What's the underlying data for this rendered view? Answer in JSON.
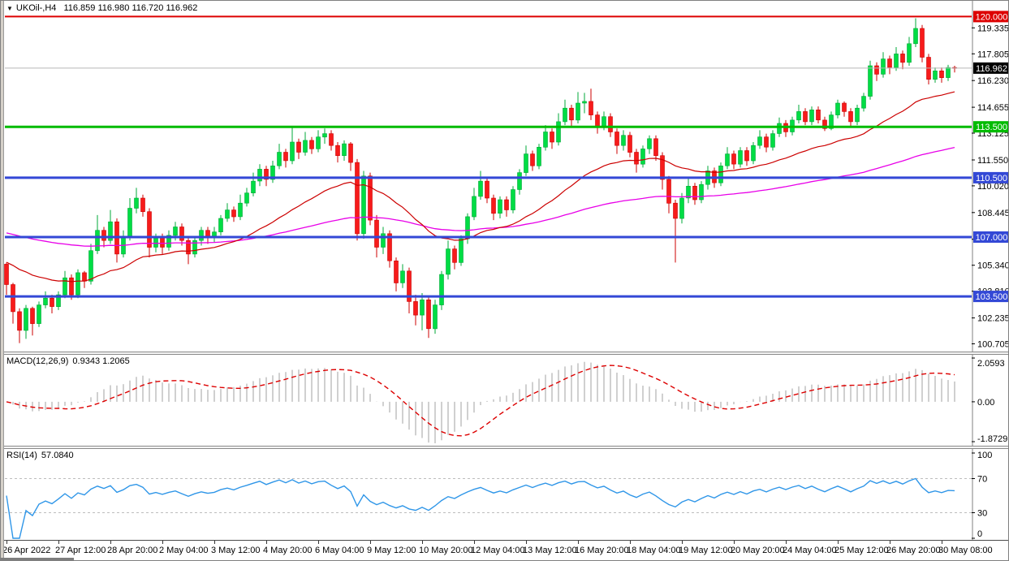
{
  "title": {
    "symbol_period": "UKOil-,H4",
    "ohlc": "116.859 116.980 116.720 116.962"
  },
  "indicator_labels": {
    "macd_name": "MACD(12,26,9)",
    "macd_values": "0.9343 1.2065",
    "rsi_name": "RSI(14)",
    "rsi_value": "57.0840"
  },
  "colors": {
    "bull_fill": "#00dd44",
    "bull_stroke": "#00a838",
    "bear_fill": "#f71b1b",
    "bear_stroke": "#cc0000",
    "ma_fast": "#cc0000",
    "ma_slow": "#e800e8",
    "level_red": "#dd0000",
    "level_green": "#00bb00",
    "level_blue": "#3348d6",
    "bid_line": "#b8b8b8",
    "bid_badge": "#000000",
    "macd_hist": "#c4c4c4",
    "macd_signal": "#dd0000",
    "rsi_line": "#2f96e8",
    "rsi_levels": "#bdbdbd",
    "axis_text": "#000000",
    "axis_line": "#808080"
  },
  "chart_data": {
    "type": "candlestick",
    "symbol": "UKOil-",
    "timeframe": "H4",
    "title": "UKOil-,H4 116.859 116.980 116.720 116.962",
    "price_axis": {
      "ticks": [
        "119.335",
        "117.805",
        "116.230",
        "114.655",
        "113.125",
        "111.550",
        "110.020",
        "108.445",
        "106.870",
        "105.340",
        "103.810",
        "102.235",
        "100.705"
      ],
      "range": [
        100.3,
        120.45
      ],
      "current_price": 116.962,
      "current_price_label": "116.962"
    },
    "levels": [
      {
        "price": 120.0,
        "label": "120.000",
        "color": "#dd0000",
        "width": 2
      },
      {
        "price": 113.5,
        "label": "113.500",
        "color": "#00bb00",
        "width": 3
      },
      {
        "price": 110.5,
        "label": "110.500",
        "color": "#3348d6",
        "width": 3
      },
      {
        "price": 107.0,
        "label": "107.000",
        "color": "#3348d6",
        "width": 3
      },
      {
        "price": 103.5,
        "label": "103.500",
        "color": "#3348d6",
        "width": 3
      }
    ],
    "time_labels": [
      "26 Apr 2022",
      "27 Apr 12:00",
      "28 Apr 20:00",
      "2 May 04:00",
      "3 May 12:00",
      "4 May 20:00",
      "6 May 04:00",
      "9 May 12:00",
      "10 May 20:00",
      "12 May 04:00",
      "13 May 12:00",
      "16 May 20:00",
      "18 May 04:00",
      "19 May 12:00",
      "20 May 20:00",
      "24 May 04:00",
      "25 May 12:00",
      "26 May 20:00",
      "30 May 08:00"
    ],
    "moving_averages": [
      {
        "name": "fast",
        "period": 16,
        "seed": 105.6,
        "color": "#cc0000"
      },
      {
        "name": "slow",
        "period": 55,
        "seed": 107.3,
        "color": "#e800e8"
      }
    ],
    "macd": {
      "params": [
        12,
        26,
        9
      ],
      "value_main": "0.9343",
      "value_signal": "1.2065",
      "axis_ticks": [
        "2.0593",
        "0.00",
        "-1.8729"
      ],
      "range": [
        -1.8729,
        2.0593
      ]
    },
    "rsi": {
      "period": 14,
      "value": "57.0840",
      "axis_ticks": [
        "100",
        "70",
        "30",
        "0"
      ],
      "levels": [
        70,
        30
      ],
      "range": [
        0,
        100
      ]
    },
    "candles": [
      [
        105.4,
        105.5,
        103.6,
        104.2
      ],
      [
        104.2,
        104.3,
        101.9,
        102.6
      ],
      [
        102.6,
        102.8,
        100.75,
        101.5
      ],
      [
        101.5,
        103.0,
        101.0,
        102.8
      ],
      [
        102.8,
        102.9,
        101.2,
        101.9
      ],
      [
        101.9,
        103.2,
        101.7,
        103.0
      ],
      [
        103.0,
        103.8,
        102.8,
        103.4
      ],
      [
        103.4,
        103.6,
        102.5,
        102.9
      ],
      [
        102.9,
        103.8,
        102.7,
        103.6
      ],
      [
        103.6,
        105.0,
        103.4,
        104.6
      ],
      [
        104.6,
        104.8,
        103.3,
        103.6
      ],
      [
        103.6,
        105.1,
        103.4,
        104.9
      ],
      [
        104.9,
        105.0,
        104.0,
        104.4
      ],
      [
        104.4,
        106.6,
        104.2,
        106.2
      ],
      [
        106.2,
        108.3,
        106.0,
        107.4
      ],
      [
        107.4,
        107.6,
        106.4,
        106.8
      ],
      [
        106.8,
        108.6,
        106.6,
        107.9
      ],
      [
        107.9,
        108.1,
        105.5,
        106.0
      ],
      [
        106.0,
        107.4,
        105.8,
        107.0
      ],
      [
        107.0,
        109.3,
        106.8,
        108.7
      ],
      [
        108.7,
        109.9,
        108.4,
        109.3
      ],
      [
        109.3,
        109.5,
        108.2,
        108.5
      ],
      [
        108.5,
        108.7,
        105.8,
        106.4
      ],
      [
        106.4,
        107.2,
        106.1,
        107.0
      ],
      [
        107.0,
        107.2,
        106.0,
        106.4
      ],
      [
        106.4,
        107.4,
        106.2,
        107.1
      ],
      [
        107.1,
        107.9,
        106.8,
        107.6
      ],
      [
        107.6,
        107.8,
        106.5,
        106.8
      ],
      [
        106.8,
        107.0,
        105.4,
        106.0
      ],
      [
        106.0,
        107.0,
        105.8,
        106.8
      ],
      [
        106.8,
        107.6,
        106.5,
        107.4
      ],
      [
        107.4,
        107.6,
        106.6,
        107.0
      ],
      [
        107.0,
        107.6,
        106.7,
        107.3
      ],
      [
        107.3,
        108.3,
        107.1,
        108.1
      ],
      [
        108.1,
        109.0,
        107.9,
        108.6
      ],
      [
        108.6,
        108.8,
        107.9,
        108.2
      ],
      [
        108.2,
        109.5,
        108.0,
        109.0
      ],
      [
        109.0,
        109.9,
        108.8,
        109.6
      ],
      [
        109.6,
        110.8,
        109.4,
        110.3
      ],
      [
        110.3,
        111.3,
        110.0,
        111.0
      ],
      [
        111.0,
        111.2,
        110.0,
        110.4
      ],
      [
        110.4,
        111.5,
        110.2,
        111.2
      ],
      [
        111.2,
        112.5,
        111.0,
        112.0
      ],
      [
        112.0,
        112.2,
        111.1,
        111.5
      ],
      [
        111.5,
        113.55,
        111.3,
        112.6
      ],
      [
        112.6,
        112.8,
        111.6,
        112.0
      ],
      [
        112.0,
        113.2,
        111.8,
        112.7
      ],
      [
        112.7,
        112.9,
        111.9,
        112.2
      ],
      [
        112.2,
        113.3,
        112.0,
        112.9
      ],
      [
        112.9,
        113.4,
        112.5,
        113.1
      ],
      [
        113.1,
        113.3,
        112.1,
        112.4
      ],
      [
        112.4,
        112.6,
        111.4,
        111.8
      ],
      [
        111.8,
        112.7,
        111.5,
        112.5
      ],
      [
        112.5,
        112.6,
        110.9,
        111.4
      ],
      [
        111.4,
        111.6,
        106.8,
        107.2
      ],
      [
        107.2,
        110.9,
        106.9,
        110.6
      ],
      [
        110.6,
        110.8,
        107.7,
        108.0
      ],
      [
        108.0,
        108.3,
        105.8,
        106.4
      ],
      [
        106.4,
        107.6,
        106.0,
        107.2
      ],
      [
        107.2,
        107.4,
        105.2,
        105.6
      ],
      [
        105.6,
        105.8,
        103.8,
        104.3
      ],
      [
        104.3,
        105.4,
        104.0,
        105.0
      ],
      [
        105.0,
        105.2,
        102.5,
        103.2
      ],
      [
        103.2,
        103.6,
        101.8,
        102.4
      ],
      [
        102.4,
        103.7,
        101.5,
        103.3
      ],
      [
        103.3,
        103.5,
        101.05,
        101.6
      ],
      [
        101.6,
        103.3,
        101.3,
        103.0
      ],
      [
        103.0,
        105.0,
        102.7,
        104.8
      ],
      [
        104.8,
        106.8,
        104.5,
        106.3
      ],
      [
        106.3,
        106.5,
        105.1,
        105.5
      ],
      [
        105.5,
        107.1,
        105.3,
        106.9
      ],
      [
        106.9,
        108.4,
        106.6,
        108.2
      ],
      [
        108.2,
        109.9,
        108.0,
        109.4
      ],
      [
        109.4,
        110.9,
        109.2,
        110.3
      ],
      [
        110.3,
        110.5,
        109.0,
        109.3
      ],
      [
        109.3,
        109.5,
        108.0,
        108.4
      ],
      [
        108.4,
        109.4,
        108.1,
        109.2
      ],
      [
        109.2,
        109.4,
        108.2,
        108.6
      ],
      [
        108.6,
        110.0,
        108.4,
        109.8
      ],
      [
        109.8,
        111.0,
        109.5,
        110.8
      ],
      [
        110.8,
        112.4,
        110.6,
        111.9
      ],
      [
        111.9,
        112.1,
        110.9,
        111.2
      ],
      [
        111.2,
        112.5,
        111.0,
        112.3
      ],
      [
        112.3,
        113.6,
        112.1,
        113.2
      ],
      [
        113.2,
        113.4,
        112.2,
        112.6
      ],
      [
        112.6,
        114.3,
        112.4,
        113.8
      ],
      [
        113.8,
        115.1,
        113.6,
        114.6
      ],
      [
        114.6,
        114.8,
        113.5,
        113.9
      ],
      [
        113.9,
        115.55,
        113.7,
        114.9
      ],
      [
        114.9,
        115.5,
        114.3,
        115.0
      ],
      [
        115.0,
        115.75,
        113.9,
        114.2
      ],
      [
        114.2,
        114.4,
        113.1,
        113.5
      ],
      [
        113.5,
        114.4,
        113.3,
        114.1
      ],
      [
        114.1,
        114.3,
        112.9,
        113.2
      ],
      [
        113.2,
        113.4,
        111.9,
        112.4
      ],
      [
        112.4,
        113.3,
        112.1,
        113.0
      ],
      [
        113.0,
        113.2,
        111.7,
        112.0
      ],
      [
        112.0,
        112.2,
        110.8,
        111.3
      ],
      [
        111.3,
        112.4,
        111.1,
        112.2
      ],
      [
        112.2,
        113.0,
        111.9,
        112.8
      ],
      [
        112.8,
        113.0,
        111.5,
        111.8
      ],
      [
        111.8,
        112.0,
        109.8,
        110.4
      ],
      [
        110.4,
        110.6,
        108.4,
        109.0
      ],
      [
        109.0,
        109.2,
        105.5,
        108.1
      ],
      [
        108.1,
        109.6,
        107.8,
        109.3
      ],
      [
        109.3,
        110.5,
        109.0,
        110.0
      ],
      [
        110.0,
        110.2,
        108.9,
        109.2
      ],
      [
        109.2,
        110.3,
        109.0,
        110.1
      ],
      [
        110.1,
        111.2,
        109.8,
        110.9
      ],
      [
        110.9,
        111.1,
        109.9,
        110.2
      ],
      [
        110.2,
        111.4,
        110.0,
        111.2
      ],
      [
        111.2,
        112.3,
        111.0,
        111.9
      ],
      [
        111.9,
        112.1,
        111.0,
        111.3
      ],
      [
        111.3,
        112.3,
        111.1,
        112.1
      ],
      [
        112.1,
        112.3,
        111.2,
        111.5
      ],
      [
        111.5,
        112.6,
        111.3,
        112.4
      ],
      [
        112.4,
        113.3,
        112.2,
        112.9
      ],
      [
        112.9,
        113.1,
        112.0,
        112.3
      ],
      [
        112.3,
        113.3,
        112.1,
        113.1
      ],
      [
        113.1,
        114.05,
        112.9,
        113.7
      ],
      [
        113.7,
        113.9,
        112.9,
        113.2
      ],
      [
        113.2,
        114.1,
        113.0,
        113.9
      ],
      [
        113.9,
        114.8,
        113.7,
        114.4
      ],
      [
        114.4,
        114.6,
        113.6,
        113.8
      ],
      [
        113.8,
        114.7,
        113.6,
        114.5
      ],
      [
        114.5,
        114.7,
        113.7,
        113.9
      ],
      [
        113.9,
        114.1,
        113.25,
        113.4
      ],
      [
        113.4,
        114.4,
        113.3,
        114.2
      ],
      [
        114.2,
        115.1,
        114.0,
        114.9
      ],
      [
        114.9,
        115.0,
        114.1,
        114.4
      ],
      [
        114.4,
        114.6,
        113.5,
        113.8
      ],
      [
        113.8,
        114.8,
        113.6,
        114.6
      ],
      [
        114.6,
        115.5,
        114.4,
        115.3
      ],
      [
        115.3,
        117.4,
        115.1,
        117.1
      ],
      [
        117.1,
        117.3,
        116.2,
        116.6
      ],
      [
        116.6,
        117.9,
        116.4,
        117.5
      ],
      [
        117.5,
        117.7,
        116.6,
        117.0
      ],
      [
        117.0,
        118.2,
        116.8,
        117.8
      ],
      [
        117.8,
        118.0,
        116.9,
        117.3
      ],
      [
        117.3,
        118.8,
        117.1,
        118.4
      ],
      [
        118.4,
        119.9,
        118.2,
        119.3
      ],
      [
        119.3,
        119.5,
        117.3,
        117.6
      ],
      [
        117.6,
        117.8,
        116.0,
        116.3
      ],
      [
        116.3,
        117.0,
        116.1,
        116.8
      ],
      [
        116.8,
        117.0,
        116.1,
        116.4
      ],
      [
        116.4,
        117.15,
        116.2,
        117.0
      ],
      [
        117.0,
        117.1,
        116.7,
        116.96
      ]
    ]
  }
}
